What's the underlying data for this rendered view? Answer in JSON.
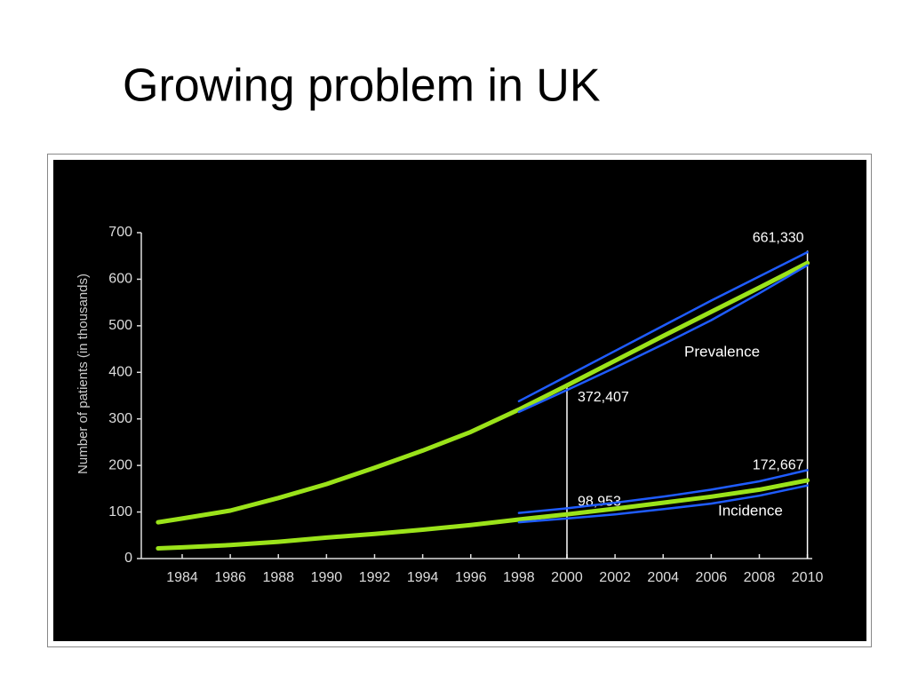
{
  "slide": {
    "title": "Growing problem in UK"
  },
  "chart_data": {
    "type": "line",
    "y_label": "Number of patients (in thousands)",
    "xlim": [
      1982.3,
      2010.2
    ],
    "ylim": [
      0,
      700
    ],
    "xticks": [
      1984,
      1986,
      1988,
      1990,
      1992,
      1994,
      1996,
      1998,
      2000,
      2002,
      2004,
      2006,
      2008,
      2010
    ],
    "yticks": [
      0,
      100,
      200,
      300,
      400,
      500,
      600,
      700
    ],
    "series": [
      {
        "name": "Prevalence",
        "color": "#9be31a",
        "x": [
          1983,
          1984,
          1986,
          1988,
          1990,
          1992,
          1994,
          1996,
          1998,
          2000,
          2002,
          2004,
          2006,
          2008,
          2010
        ],
        "values": [
          78,
          86,
          103,
          130,
          160,
          195,
          232,
          272,
          320,
          372,
          425,
          478,
          530,
          582,
          635
        ]
      },
      {
        "name": "Incidence",
        "color": "#9be31a",
        "x": [
          1983,
          1984,
          1986,
          1988,
          1990,
          1992,
          1994,
          1996,
          1998,
          2000,
          2002,
          2004,
          2006,
          2008,
          2010
        ],
        "values": [
          22,
          24,
          29,
          36,
          45,
          53,
          62,
          72,
          84,
          95,
          107,
          120,
          133,
          148,
          168
        ]
      },
      {
        "color": "#1f5cff",
        "x": [
          1998,
          2000,
          2002,
          2004,
          2006,
          2008,
          2010
        ],
        "values": [
          338,
          392,
          446,
          500,
          554,
          606,
          658
        ]
      },
      {
        "color": "#1f5cff",
        "x": [
          1998,
          2000,
          2002,
          2004,
          2006,
          2008,
          2010
        ],
        "values": [
          315,
          362,
          410,
          460,
          512,
          570,
          630
        ]
      },
      {
        "color": "#1f5cff",
        "x": [
          1998,
          2000,
          2002,
          2004,
          2006,
          2008,
          2010
        ],
        "values": [
          98,
          108,
          120,
          133,
          148,
          166,
          190
        ]
      },
      {
        "color": "#1f5cff",
        "x": [
          1998,
          2000,
          2002,
          2004,
          2006,
          2008,
          2010
        ],
        "values": [
          78,
          86,
          95,
          106,
          118,
          135,
          157
        ]
      }
    ],
    "annotations": [
      {
        "x": 2000,
        "value": 372.407,
        "label": "372,407"
      },
      {
        "x": 2000,
        "value": 98.953,
        "label": "98,953"
      },
      {
        "x": 2010,
        "value": 661.33,
        "label": "661,330"
      },
      {
        "x": 2010,
        "value": 172.667,
        "label": "172,667"
      }
    ]
  }
}
